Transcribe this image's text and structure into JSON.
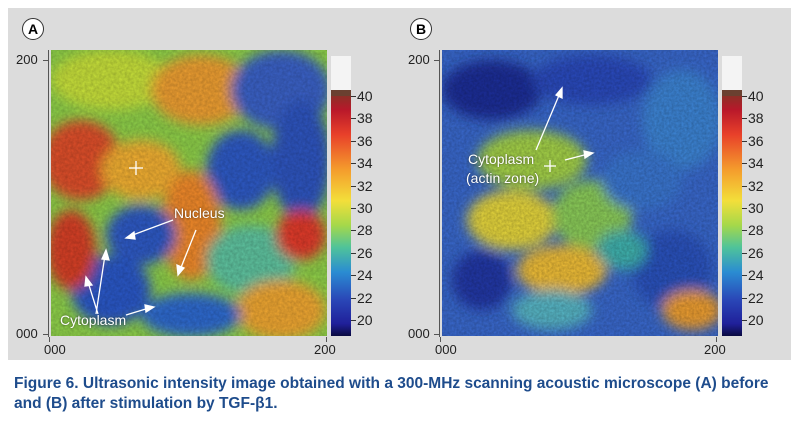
{
  "panels": [
    {
      "id": "a",
      "label": "A",
      "y_max": "200",
      "y_min": "000",
      "x_min": "000",
      "x_max": "200",
      "annotations": [
        "Nucleus",
        "Cytoplasm"
      ]
    },
    {
      "id": "b",
      "label": "B",
      "y_max": "200",
      "y_min": "000",
      "x_min": "000",
      "x_max": "200",
      "annotations": [
        "Cytoplasm",
        "(actin zone)"
      ]
    }
  ],
  "colorbar": {
    "ticks": [
      "40",
      "38",
      "36",
      "34",
      "32",
      "30",
      "28",
      "26",
      "24",
      "22",
      "20"
    ],
    "min": 20,
    "max": 40
  },
  "caption": "Figure 6. Ultrasonic intensity image obtained with a 300-MHz scanning acoustic microscope (A) before and (B) after stimulation by TGF-β1.",
  "colors": {
    "caption": "#1e4c8c",
    "background": "#dcdcdc"
  }
}
